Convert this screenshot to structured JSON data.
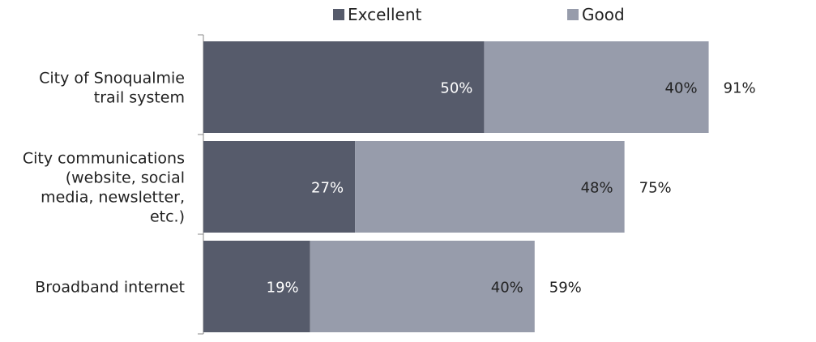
{
  "chart_data": {
    "type": "bar",
    "orientation": "horizontal",
    "stacked": true,
    "categories": [
      "City of Snoqualmie trail system",
      "City communications (website, social media, newsletter, etc.)",
      "Broadband internet"
    ],
    "category_lines": [
      [
        "City of Snoqualmie",
        "trail system"
      ],
      [
        "City communications",
        "(website, social",
        "media, newsletter,",
        "etc.)"
      ],
      [
        "Broadband internet"
      ]
    ],
    "series": [
      {
        "name": "Excellent",
        "values": [
          50,
          27,
          19
        ],
        "labels": [
          "50%",
          "27%",
          "19%"
        ],
        "color": "#565b6b",
        "label_color": "#ffffff"
      },
      {
        "name": "Good",
        "values": [
          40,
          48,
          40
        ],
        "labels": [
          "40%",
          "48%",
          "40%"
        ],
        "color": "#979cab",
        "label_color": "#222222"
      }
    ],
    "totals": [
      91,
      75,
      59
    ],
    "total_labels": [
      "91%",
      "75%",
      "59%"
    ],
    "xlim": [
      0,
      100
    ],
    "legend": "top-center",
    "grid": false
  }
}
